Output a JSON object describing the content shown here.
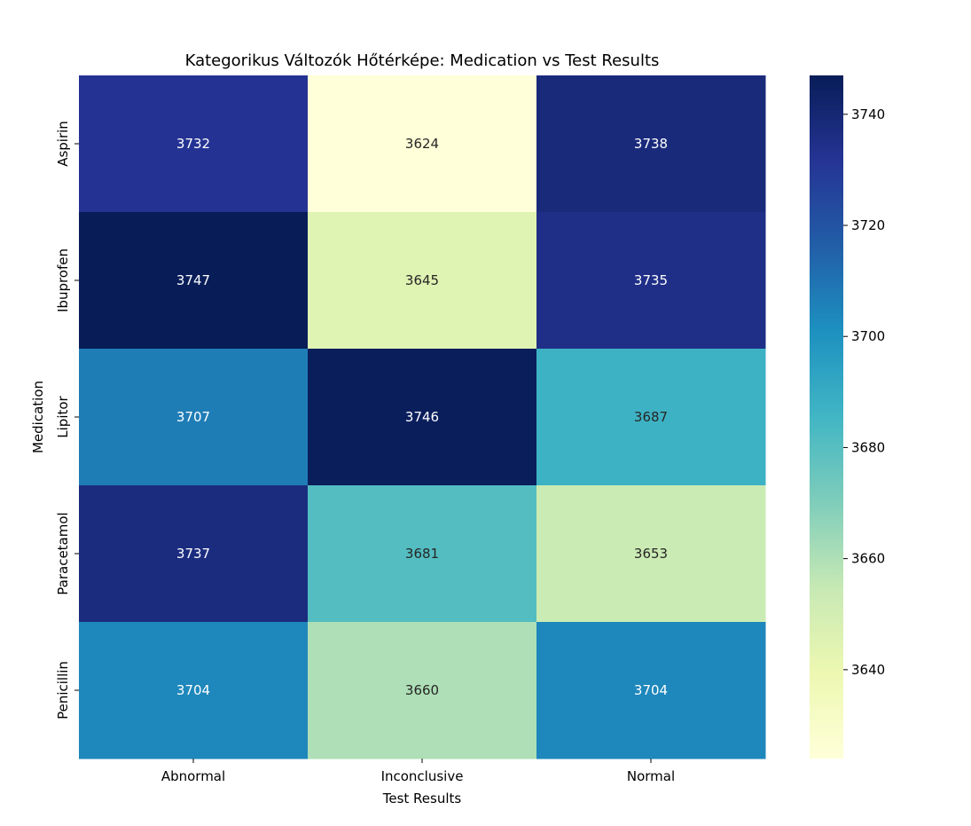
{
  "chart_data": {
    "type": "heatmap",
    "title": "Kategorikus Változók Hőtérképe: Medication vs Test Results",
    "xlabel": "Test Results",
    "ylabel": "Medication",
    "x_categories": [
      "Abnormal",
      "Inconclusive",
      "Normal"
    ],
    "y_categories": [
      "Aspirin",
      "Ibuprofen",
      "Lipitor",
      "Paracetamol",
      "Penicillin"
    ],
    "values": [
      [
        3732,
        3624,
        3738
      ],
      [
        3747,
        3645,
        3735
      ],
      [
        3707,
        3746,
        3687
      ],
      [
        3737,
        3681,
        3653
      ],
      [
        3704,
        3660,
        3704
      ]
    ],
    "colormap": "YlGnBu",
    "colorbar": {
      "range": [
        3624,
        3747
      ],
      "ticks": [
        3640,
        3660,
        3680,
        3700,
        3720,
        3740
      ]
    }
  }
}
